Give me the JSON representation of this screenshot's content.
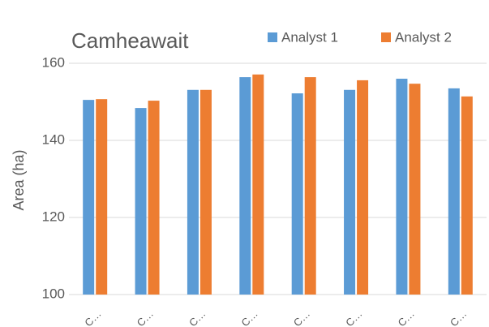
{
  "chart_data": {
    "type": "bar",
    "title": "Camheawait",
    "y_label": "Area (ha)",
    "categories": [
      "C…",
      "C…",
      "C…",
      "C…",
      "C…",
      "C…",
      "C…",
      "C…"
    ],
    "series": [
      {
        "name": "Analyst 1",
        "color": "#5b9bd5",
        "values": [
          150.5,
          148.4,
          153.1,
          156.4,
          152.2,
          153.1,
          156.0,
          153.5
        ]
      },
      {
        "name": "Analyst 2",
        "color": "#ed7d31",
        "values": [
          150.7,
          150.3,
          153.1,
          157.1,
          156.4,
          155.6,
          154.7,
          151.4
        ]
      }
    ],
    "ylim": [
      100,
      160
    ],
    "yticks": [
      100,
      120,
      140,
      160
    ],
    "grid": true,
    "legend": "top-right"
  }
}
